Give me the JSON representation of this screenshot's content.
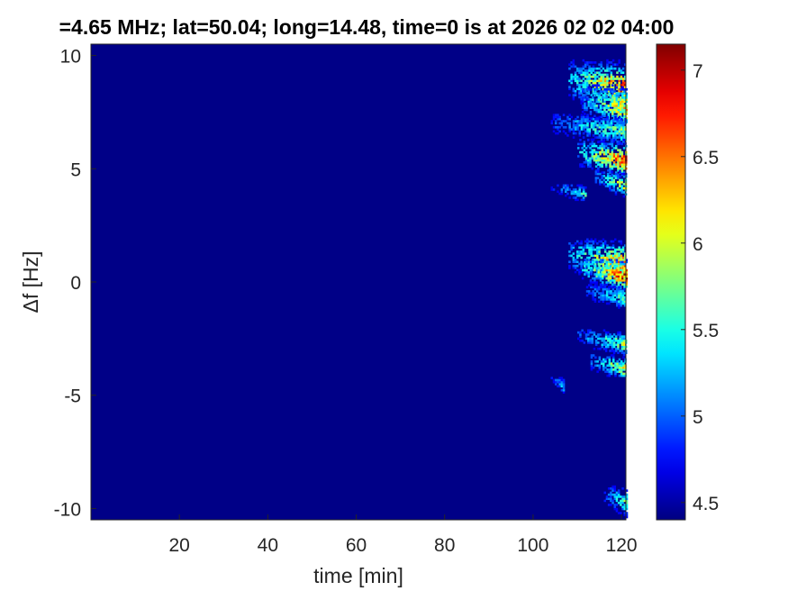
{
  "chart_data": {
    "type": "heatmap",
    "title": "=4.65 MHz;  lat=50.04; long=14.48, time=0 is at 2026 02 02 04:00",
    "xlabel": "time [min]",
    "ylabel": "Δf [Hz]",
    "xlim": [
      0,
      121
    ],
    "ylim": [
      -10.5,
      10.5
    ],
    "xticks": [
      20,
      40,
      60,
      80,
      100,
      120
    ],
    "yticks": [
      10,
      5,
      0,
      -5,
      -10
    ],
    "colorbar": {
      "colormap": "jet",
      "clim": [
        4.4,
        7.15
      ],
      "ticks": [
        7,
        6.5,
        6,
        5.5,
        5,
        4.5
      ],
      "tick_labels": [
        "7",
        "6.5",
        "6",
        "5.5",
        "5",
        "4.5"
      ]
    },
    "background_level": 4.42,
    "features": [
      {
        "t_start": 108,
        "t_end": 121,
        "f_center": 8.5,
        "f_halfwidth": 0.8,
        "peak": 6.8
      },
      {
        "t_start": 111,
        "t_end": 121,
        "f_center": 7.6,
        "f_halfwidth": 0.7,
        "peak": 6.4
      },
      {
        "t_start": 104,
        "t_end": 121,
        "f_center": 6.6,
        "f_halfwidth": 0.5,
        "peak": 5.9
      },
      {
        "t_start": 110,
        "t_end": 121,
        "f_center": 5.3,
        "f_halfwidth": 0.6,
        "peak": 6.9
      },
      {
        "t_start": 114,
        "t_end": 121,
        "f_center": 4.2,
        "f_halfwidth": 0.4,
        "peak": 6.2
      },
      {
        "t_start": 104,
        "t_end": 112,
        "f_center": 3.8,
        "f_halfwidth": 0.3,
        "peak": 5.6
      },
      {
        "t_start": 108,
        "t_end": 121,
        "f_center": 0.8,
        "f_halfwidth": 0.7,
        "peak": 6.6
      },
      {
        "t_start": 111,
        "t_end": 121,
        "f_center": 0.2,
        "f_halfwidth": 0.5,
        "peak": 7.0
      },
      {
        "t_start": 112,
        "t_end": 121,
        "f_center": -0.8,
        "f_halfwidth": 0.4,
        "peak": 5.8
      },
      {
        "t_start": 110,
        "t_end": 121,
        "f_center": -2.8,
        "f_halfwidth": 0.4,
        "peak": 6.0
      },
      {
        "t_start": 113,
        "t_end": 121,
        "f_center": -3.9,
        "f_halfwidth": 0.4,
        "peak": 6.3
      },
      {
        "t_start": 104,
        "t_end": 107,
        "f_center": -4.7,
        "f_halfwidth": 0.3,
        "peak": 5.4
      },
      {
        "t_start": 116,
        "t_end": 121,
        "f_center": -9.8,
        "f_halfwidth": 0.5,
        "peak": 5.8
      }
    ]
  }
}
